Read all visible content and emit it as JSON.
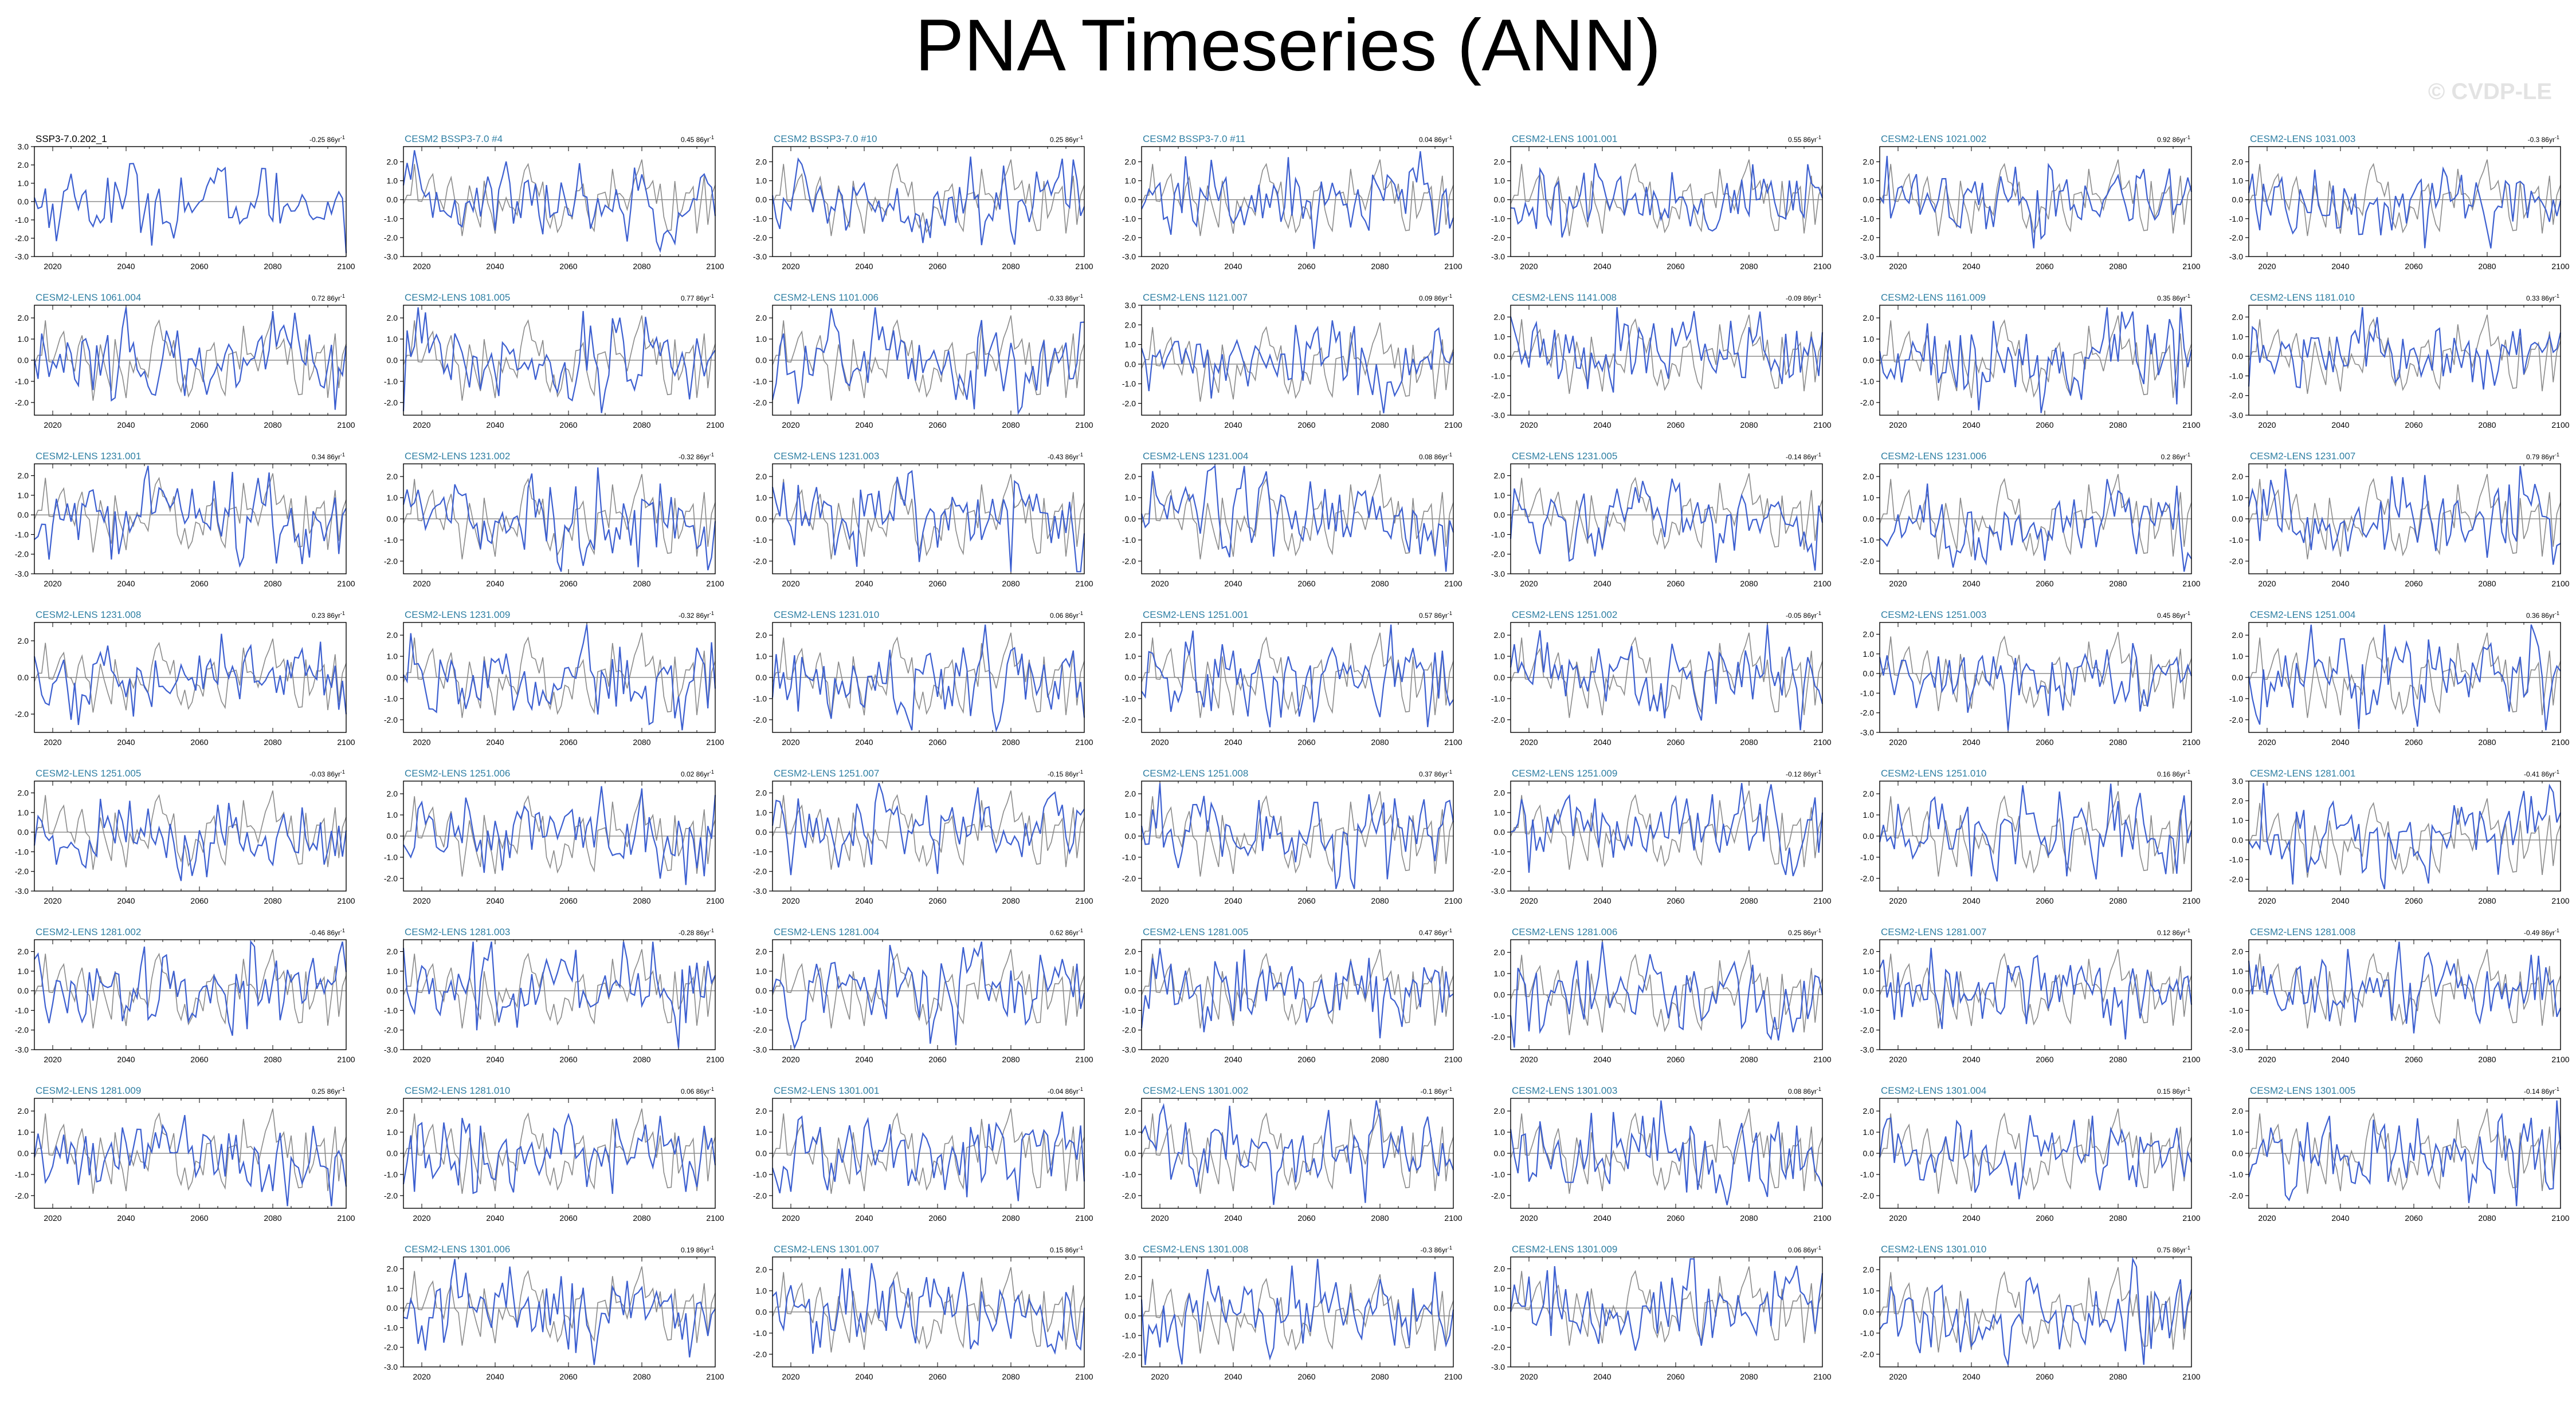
{
  "title": "PNA Timeseries (ANN)",
  "watermark": "© CVDP-LE",
  "colors": {
    "member": "#3c5fd0",
    "reference": "#8a8a8a",
    "label_obs": "#000000",
    "label_model": "#2f7fa3"
  },
  "chart_data": {
    "type": "line",
    "x_ticks": [
      2020,
      2040,
      2060,
      2080,
      2100
    ],
    "xlim": [
      2015,
      2100
    ],
    "layout": "small-multiples",
    "panels": [
      {
        "label": "SSP3-7.0.202_1",
        "trend": "-0.25 86yr",
        "y_ticks": [
          "3.0",
          "2.0",
          "1.0",
          "0.0",
          "-1.0",
          "-2.0",
          "-3.0"
        ],
        "ylim": [
          -3,
          3
        ],
        "reference": true
      },
      {
        "label": "CESM2 BSSP3-7.0 #4",
        "trend": "0.45 86yr",
        "y_ticks": [
          "2.0",
          "1.0",
          "0.0",
          "-1.0",
          "-2.0",
          "-3.0"
        ],
        "ylim": [
          -3,
          2.8
        ]
      },
      {
        "label": "CESM2 BSSP3-7.0 #10",
        "trend": "0.25 86yr",
        "y_ticks": [
          "2.0",
          "1.0",
          "0.0",
          "-1.0",
          "-2.0",
          "-3.0"
        ],
        "ylim": [
          -3,
          2.8
        ]
      },
      {
        "label": "CESM2 BSSP3-7.0 #11",
        "trend": "0.04 86yr",
        "y_ticks": [
          "2.0",
          "1.0",
          "0.0",
          "-1.0",
          "-2.0",
          "-3.0"
        ],
        "ylim": [
          -3,
          2.8
        ]
      },
      {
        "label": "CESM2-LENS 1001.001",
        "trend": "0.55 86yr",
        "y_ticks": [
          "2.0",
          "1.0",
          "0.0",
          "-1.0",
          "-2.0",
          "-3.0"
        ],
        "ylim": [
          -3,
          2.8
        ]
      },
      {
        "label": "CESM2-LENS 1021.002",
        "trend": "0.92 86yr",
        "y_ticks": [
          "2.0",
          "1.0",
          "0.0",
          "-1.0",
          "-2.0",
          "-3.0"
        ],
        "ylim": [
          -3,
          2.8
        ]
      },
      {
        "label": "CESM2-LENS 1031.003",
        "trend": "-0.3 86yr",
        "y_ticks": [
          "2.0",
          "1.0",
          "0.0",
          "-1.0",
          "-2.0",
          "-3.0"
        ],
        "ylim": [
          -3,
          2.8
        ]
      },
      {
        "label": "CESM2-LENS 1061.004",
        "trend": "0.72 86yr",
        "y_ticks": [
          "2.0",
          "1.0",
          "0.0",
          "-1.0",
          "-2.0"
        ],
        "ylim": [
          -2.6,
          2.6
        ]
      },
      {
        "label": "CESM2-LENS 1081.005",
        "trend": "0.77 86yr",
        "y_ticks": [
          "2.0",
          "1.0",
          "0.0",
          "-1.0",
          "-2.0"
        ],
        "ylim": [
          -2.6,
          2.6
        ]
      },
      {
        "label": "CESM2-LENS 1101.006",
        "trend": "-0.33 86yr",
        "y_ticks": [
          "2.0",
          "1.0",
          "0.0",
          "-1.0",
          "-2.0"
        ],
        "ylim": [
          -2.6,
          2.6
        ]
      },
      {
        "label": "CESM2-LENS 1121.007",
        "trend": "0.09 86yr",
        "y_ticks": [
          "3.0",
          "2.0",
          "1.0",
          "0.0",
          "-1.0",
          "-2.0"
        ],
        "ylim": [
          -2.6,
          3.0
        ]
      },
      {
        "label": "CESM2-LENS 1141.008",
        "trend": "-0.09 86yr",
        "y_ticks": [
          "2.0",
          "1.0",
          "0.0",
          "-1.0",
          "-2.0",
          "-3.0"
        ],
        "ylim": [
          -3,
          2.6
        ]
      },
      {
        "label": "CESM2-LENS 1161.009",
        "trend": "0.35 86yr",
        "y_ticks": [
          "2.0",
          "1.0",
          "0.0",
          "-1.0",
          "-2.0"
        ],
        "ylim": [
          -2.6,
          2.6
        ]
      },
      {
        "label": "CESM2-LENS 1181.010",
        "trend": "0.33 86yr",
        "y_ticks": [
          "2.0",
          "1.0",
          "0.0",
          "-1.0",
          "-2.0",
          "-3.0"
        ],
        "ylim": [
          -3,
          2.6
        ]
      },
      {
        "label": "CESM2-LENS 1231.001",
        "trend": "0.34 86yr",
        "y_ticks": [
          "2.0",
          "1.0",
          "0.0",
          "-1.0",
          "-2.0",
          "-3.0"
        ],
        "ylim": [
          -3,
          2.6
        ]
      },
      {
        "label": "CESM2-LENS 1231.002",
        "trend": "-0.32 86yr",
        "y_ticks": [
          "2.0",
          "1.0",
          "0.0",
          "-1.0",
          "-2.0"
        ],
        "ylim": [
          -2.6,
          2.6
        ]
      },
      {
        "label": "CESM2-LENS 1231.003",
        "trend": "-0.43 86yr",
        "y_ticks": [
          "2.0",
          "1.0",
          "0.0",
          "-1.0",
          "-2.0"
        ],
        "ylim": [
          -2.6,
          2.6
        ]
      },
      {
        "label": "CESM2-LENS 1231.004",
        "trend": "0.08 86yr",
        "y_ticks": [
          "2.0",
          "1.0",
          "0.0",
          "-1.0",
          "-2.0"
        ],
        "ylim": [
          -2.6,
          2.6
        ]
      },
      {
        "label": "CESM2-LENS 1231.005",
        "trend": "-0.14 86yr",
        "y_ticks": [
          "2.0",
          "1.0",
          "0.0",
          "-1.0",
          "-2.0",
          "-3.0"
        ],
        "ylim": [
          -3,
          2.6
        ]
      },
      {
        "label": "CESM2-LENS 1231.006",
        "trend": "0.2 86yr",
        "y_ticks": [
          "2.0",
          "1.0",
          "0.0",
          "-1.0",
          "-2.0"
        ],
        "ylim": [
          -2.6,
          2.6
        ]
      },
      {
        "label": "CESM2-LENS 1231.007",
        "trend": "0.79 86yr",
        "y_ticks": [
          "2.0",
          "1.0",
          "0.0",
          "-1.0",
          "-2.0"
        ],
        "ylim": [
          -2.6,
          2.6
        ]
      },
      {
        "label": "CESM2-LENS 1231.008",
        "trend": "0.23 86yr",
        "y_ticks": [
          "2.0",
          "0.0",
          "-2.0"
        ],
        "ylim": [
          -3,
          3
        ]
      },
      {
        "label": "CESM2-LENS 1231.009",
        "trend": "-0.32 86yr",
        "y_ticks": [
          "2.0",
          "1.0",
          "0.0",
          "-1.0",
          "-2.0"
        ],
        "ylim": [
          -2.6,
          2.6
        ]
      },
      {
        "label": "CESM2-LENS 1231.010",
        "trend": "0.06 86yr",
        "y_ticks": [
          "2.0",
          "1.0",
          "0.0",
          "-1.0",
          "-2.0"
        ],
        "ylim": [
          -2.6,
          2.6
        ]
      },
      {
        "label": "CESM2-LENS 1251.001",
        "trend": "0.57 86yr",
        "y_ticks": [
          "2.0",
          "1.0",
          "0.0",
          "-1.0",
          "-2.0"
        ],
        "ylim": [
          -2.6,
          2.6
        ]
      },
      {
        "label": "CESM2-LENS 1251.002",
        "trend": "-0.05 86yr",
        "y_ticks": [
          "2.0",
          "1.0",
          "0.0",
          "-1.0",
          "-2.0"
        ],
        "ylim": [
          -2.6,
          2.6
        ]
      },
      {
        "label": "CESM2-LENS 1251.003",
        "trend": "0.45 86yr",
        "y_ticks": [
          "2.0",
          "1.0",
          "0.0",
          "-1.0",
          "-2.0",
          "-3.0"
        ],
        "ylim": [
          -3,
          2.6
        ]
      },
      {
        "label": "CESM2-LENS 1251.004",
        "trend": "0.36 86yr",
        "y_ticks": [
          "2.0",
          "1.0",
          "0.0",
          "-1.0",
          "-2.0"
        ],
        "ylim": [
          -2.6,
          2.6
        ]
      },
      {
        "label": "CESM2-LENS 1251.005",
        "trend": "-0.03 86yr",
        "y_ticks": [
          "2.0",
          "1.0",
          "0.0",
          "-1.0",
          "-2.0",
          "-3.0"
        ],
        "ylim": [
          -3,
          2.6
        ]
      },
      {
        "label": "CESM2-LENS 1251.006",
        "trend": "0.02 86yr",
        "y_ticks": [
          "2.0",
          "1.0",
          "0.0",
          "-1.0",
          "-2.0"
        ],
        "ylim": [
          -2.6,
          2.6
        ]
      },
      {
        "label": "CESM2-LENS 1251.007",
        "trend": "-0.15 86yr",
        "y_ticks": [
          "2.0",
          "1.0",
          "0.0",
          "-1.0",
          "-2.0",
          "-3.0"
        ],
        "ylim": [
          -3,
          2.6
        ]
      },
      {
        "label": "CESM2-LENS 1251.008",
        "trend": "0.37 86yr",
        "y_ticks": [
          "2.0",
          "1.0",
          "0.0",
          "-1.0",
          "-2.0"
        ],
        "ylim": [
          -2.6,
          2.6
        ]
      },
      {
        "label": "CESM2-LENS 1251.009",
        "trend": "-0.12 86yr",
        "y_ticks": [
          "2.0",
          "1.0",
          "0.0",
          "-1.0",
          "-2.0",
          "-3.0"
        ],
        "ylim": [
          -3,
          2.6
        ]
      },
      {
        "label": "CESM2-LENS 1251.010",
        "trend": "0.16 86yr",
        "y_ticks": [
          "2.0",
          "1.0",
          "0.0",
          "-1.0",
          "-2.0"
        ],
        "ylim": [
          -2.6,
          2.6
        ]
      },
      {
        "label": "CESM2-LENS 1281.001",
        "trend": "-0.41 86yr",
        "y_ticks": [
          "3.0",
          "2.0",
          "1.0",
          "0.0",
          "-1.0",
          "-2.0"
        ],
        "ylim": [
          -2.6,
          3.0
        ]
      },
      {
        "label": "CESM2-LENS 1281.002",
        "trend": "-0.46 86yr",
        "y_ticks": [
          "2.0",
          "1.0",
          "0.0",
          "-1.0",
          "-2.0",
          "-3.0"
        ],
        "ylim": [
          -3,
          2.6
        ]
      },
      {
        "label": "CESM2-LENS 1281.003",
        "trend": "-0.28 86yr",
        "y_ticks": [
          "2.0",
          "1.0",
          "0.0",
          "-1.0",
          "-2.0",
          "-3.0"
        ],
        "ylim": [
          -3,
          2.6
        ]
      },
      {
        "label": "CESM2-LENS 1281.004",
        "trend": "0.62 86yr",
        "y_ticks": [
          "2.0",
          "1.0",
          "0.0",
          "-1.0",
          "-2.0",
          "-3.0"
        ],
        "ylim": [
          -3,
          2.6
        ]
      },
      {
        "label": "CESM2-LENS 1281.005",
        "trend": "0.47 86yr",
        "y_ticks": [
          "2.0",
          "1.0",
          "0.0",
          "-1.0",
          "-2.0",
          "-3.0"
        ],
        "ylim": [
          -3,
          2.6
        ]
      },
      {
        "label": "CESM2-LENS 1281.006",
        "trend": "0.25 86yr",
        "y_ticks": [
          "2.0",
          "1.0",
          "0.0",
          "-1.0",
          "-2.0"
        ],
        "ylim": [
          -2.6,
          2.6
        ]
      },
      {
        "label": "CESM2-LENS 1281.007",
        "trend": "0.12 86yr",
        "y_ticks": [
          "2.0",
          "1.0",
          "0.0",
          "-1.0",
          "-2.0",
          "-3.0"
        ],
        "ylim": [
          -3,
          2.6
        ]
      },
      {
        "label": "CESM2-LENS 1281.008",
        "trend": "-0.49 86yr",
        "y_ticks": [
          "2.0",
          "1.0",
          "0.0",
          "-1.0",
          "-2.0",
          "-3.0"
        ],
        "ylim": [
          -3,
          2.6
        ]
      },
      {
        "label": "CESM2-LENS 1281.009",
        "trend": "0.25 86yr",
        "y_ticks": [
          "2.0",
          "1.0",
          "0.0",
          "-1.0",
          "-2.0"
        ],
        "ylim": [
          -2.6,
          2.6
        ]
      },
      {
        "label": "CESM2-LENS 1281.010",
        "trend": "0.06 86yr",
        "y_ticks": [
          "2.0",
          "1.0",
          "0.0",
          "-1.0",
          "-2.0"
        ],
        "ylim": [
          -2.6,
          2.6
        ]
      },
      {
        "label": "CESM2-LENS 1301.001",
        "trend": "-0.04 86yr",
        "y_ticks": [
          "2.0",
          "1.0",
          "0.0",
          "-1.0",
          "-2.0"
        ],
        "ylim": [
          -2.6,
          2.6
        ]
      },
      {
        "label": "CESM2-LENS 1301.002",
        "trend": "-0.1 86yr",
        "y_ticks": [
          "2.0",
          "1.0",
          "0.0",
          "-1.0",
          "-2.0"
        ],
        "ylim": [
          -2.6,
          2.6
        ]
      },
      {
        "label": "CESM2-LENS 1301.003",
        "trend": "0.08 86yr",
        "y_ticks": [
          "2.0",
          "1.0",
          "0.0",
          "-1.0",
          "-2.0"
        ],
        "ylim": [
          -2.6,
          2.6
        ]
      },
      {
        "label": "CESM2-LENS 1301.004",
        "trend": "0.15 86yr",
        "y_ticks": [
          "2.0",
          "1.0",
          "0.0",
          "-1.0",
          "-2.0"
        ],
        "ylim": [
          -2.6,
          2.6
        ]
      },
      {
        "label": "CESM2-LENS 1301.005",
        "trend": "-0.14 86yr",
        "y_ticks": [
          "2.0",
          "1.0",
          "0.0",
          "-1.0",
          "-2.0"
        ],
        "ylim": [
          -2.6,
          2.6
        ]
      },
      {
        "label": "CESM2-LENS 1301.006",
        "trend": "0.19 86yr",
        "y_ticks": [
          "2.0",
          "1.0",
          "0.0",
          "-1.0",
          "-2.0",
          "-3.0"
        ],
        "ylim": [
          -3,
          2.6
        ]
      },
      {
        "label": "CESM2-LENS 1301.007",
        "trend": "0.15 86yr",
        "y_ticks": [
          "2.0",
          "1.0",
          "0.0",
          "-1.0",
          "-2.0"
        ],
        "ylim": [
          -2.6,
          2.6
        ]
      },
      {
        "label": "CESM2-LENS 1301.008",
        "trend": "-0.3 86yr",
        "y_ticks": [
          "3.0",
          "2.0",
          "1.0",
          "0.0",
          "-1.0",
          "-2.0"
        ],
        "ylim": [
          -2.6,
          3.0
        ]
      },
      {
        "label": "CESM2-LENS 1301.009",
        "trend": "0.06 86yr",
        "y_ticks": [
          "2.0",
          "1.0",
          "0.0",
          "-1.0",
          "-2.0",
          "-3.0"
        ],
        "ylim": [
          -3,
          2.6
        ]
      },
      {
        "label": "CESM2-LENS 1301.010",
        "trend": "0.75 86yr",
        "y_ticks": [
          "2.0",
          "1.0",
          "0.0",
          "-1.0",
          "-2.0"
        ],
        "ylim": [
          -2.6,
          2.6
        ]
      }
    ]
  }
}
